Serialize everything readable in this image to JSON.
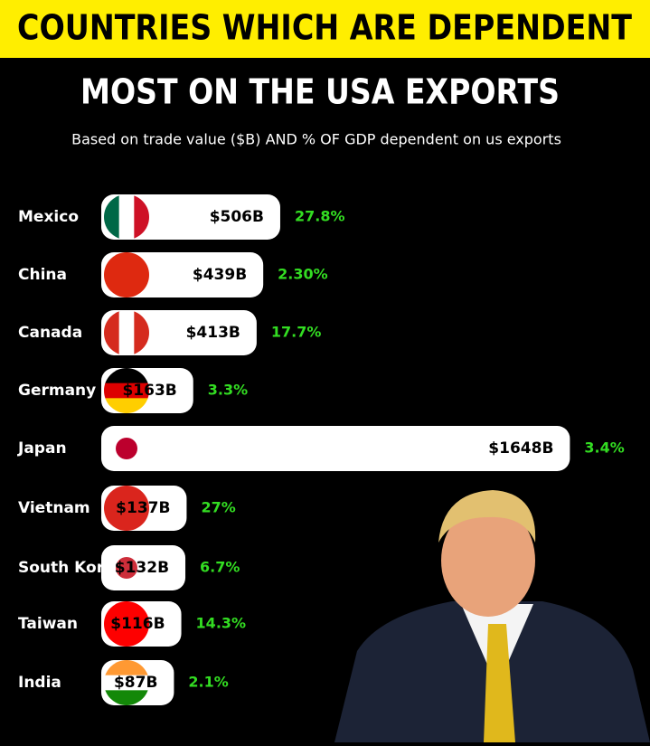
{
  "chart_data": {
    "type": "bar",
    "orientation": "horizontal",
    "title": "COUNTRIES WHICH ARE DEPENDENT",
    "subtitle": "MOST ON THE USA EXPORTS",
    "description": "Based on trade value ($B) AND % OF GDP dependent on us exports",
    "categories": [
      "Mexico",
      "China",
      "Canada",
      "Germany",
      "Japan",
      "Vietnam",
      "South Korea",
      "Taiwan",
      "India"
    ],
    "values": [
      506,
      439,
      413,
      163,
      1648,
      137,
      132,
      116,
      87
    ],
    "value_labels": [
      "$506B",
      "$439B",
      "$413B",
      "$163B",
      "$1648B",
      "$137B",
      "$132B",
      "$116B",
      "$87B"
    ],
    "gdp_share": [
      27.8,
      2.3,
      17.7,
      3.3,
      3.4,
      27,
      6.7,
      14.3,
      2.1
    ],
    "gdp_share_labels": [
      "27.8%",
      "2.30%",
      "17.7%",
      "3.3%",
      "3.4%",
      "27%",
      "6.7%",
      "14.3%",
      "2.1%"
    ],
    "color": "#ffffff",
    "xlim": [
      0,
      1700
    ]
  }
}
